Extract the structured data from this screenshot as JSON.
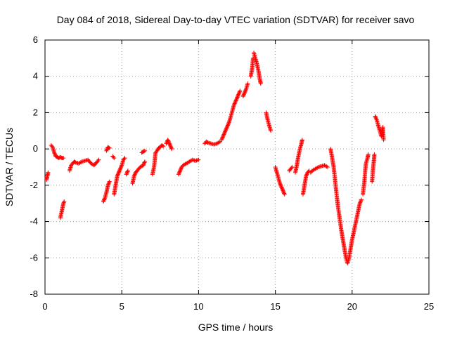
{
  "chart_data": {
    "type": "scatter",
    "title": "Day 084 of 2018, Sidereal Day-to-day VTEC variation (SDTVAR) for receiver savo",
    "xlabel": "GPS time / hours",
    "ylabel": "SDTVAR / TECUs",
    "xlim": [
      0,
      25
    ],
    "ylim": [
      -8,
      6
    ],
    "xticks": [
      0,
      5,
      10,
      15,
      20,
      25
    ],
    "yticks": [
      -8,
      -6,
      -4,
      -2,
      0,
      2,
      4,
      6
    ],
    "xtick_labels": [
      "0",
      "5",
      "10",
      "15",
      "20",
      "25"
    ],
    "ytick_labels": [
      "-8",
      "-6",
      "-4",
      "-2",
      "0",
      "2",
      "4",
      "6"
    ],
    "grid": true,
    "marker": "+",
    "marker_color": "#ff0000",
    "series": [
      {
        "segments": [
          [
            [
              0.1,
              -1.7
            ],
            [
              0.15,
              -1.5
            ],
            [
              0.2,
              -1.3
            ]
          ],
          [
            [
              0.4,
              0.2
            ],
            [
              0.5,
              0.1
            ],
            [
              0.6,
              -0.2
            ],
            [
              0.7,
              -0.4
            ],
            [
              0.8,
              -0.45
            ],
            [
              0.9,
              -0.5
            ],
            [
              1.0,
              -0.45
            ],
            [
              1.1,
              -0.5
            ],
            [
              1.2,
              -0.5
            ]
          ],
          [
            [
              1.0,
              -3.8
            ],
            [
              1.1,
              -3.4
            ],
            [
              1.2,
              -3.0
            ],
            [
              1.25,
              -2.9
            ]
          ],
          [
            [
              1.6,
              -1.2
            ],
            [
              1.7,
              -0.9
            ],
            [
              1.8,
              -0.8
            ],
            [
              1.9,
              -0.7
            ],
            [
              2.0,
              -0.75
            ],
            [
              2.2,
              -0.8
            ],
            [
              2.4,
              -0.7
            ],
            [
              2.6,
              -0.65
            ],
            [
              2.8,
              -0.6
            ],
            [
              3.0,
              -0.8
            ],
            [
              3.2,
              -0.9
            ],
            [
              3.4,
              -0.7
            ],
            [
              3.5,
              -0.6
            ]
          ],
          [
            [
              3.8,
              -2.9
            ],
            [
              3.9,
              -2.7
            ],
            [
              4.0,
              -2.4
            ],
            [
              4.1,
              -2.0
            ],
            [
              4.2,
              -1.8
            ]
          ],
          [
            [
              4.0,
              -0.1
            ],
            [
              4.1,
              0.1
            ],
            [
              4.2,
              0.05
            ]
          ],
          [
            [
              4.4,
              -0.4
            ],
            [
              4.5,
              -0.5
            ]
          ],
          [
            [
              4.5,
              -2.5
            ],
            [
              4.6,
              -2.0
            ],
            [
              4.7,
              -1.5
            ],
            [
              4.8,
              -1.3
            ],
            [
              4.9,
              -1.1
            ],
            [
              5.0,
              -0.9
            ],
            [
              5.1,
              -0.6
            ],
            [
              5.2,
              -0.5
            ]
          ],
          [
            [
              5.3,
              -1.4
            ],
            [
              5.4,
              -1.2
            ]
          ],
          [
            [
              5.7,
              -1.9
            ],
            [
              5.8,
              -1.5
            ],
            [
              5.9,
              -1.3
            ],
            [
              6.0,
              -1.2
            ],
            [
              6.1,
              -1.1
            ],
            [
              6.2,
              -1.0
            ],
            [
              6.4,
              -0.9
            ],
            [
              6.5,
              -0.7
            ]
          ],
          [
            [
              6.3,
              -0.2
            ],
            [
              6.4,
              -0.15
            ],
            [
              6.5,
              -0.1
            ]
          ],
          [
            [
              7.0,
              -1.4
            ],
            [
              7.1,
              -1.0
            ],
            [
              7.15,
              -0.6
            ],
            [
              7.2,
              -0.2
            ],
            [
              7.3,
              -0.1
            ],
            [
              7.4,
              0.05
            ],
            [
              7.5,
              0.1
            ],
            [
              7.6,
              0.2
            ],
            [
              7.7,
              0.15
            ]
          ],
          [
            [
              7.9,
              0.3
            ],
            [
              8.0,
              0.5
            ],
            [
              8.1,
              0.3
            ],
            [
              8.2,
              0.1
            ],
            [
              8.25,
              0.0
            ]
          ],
          [
            [
              8.7,
              -1.4
            ],
            [
              8.8,
              -1.2
            ],
            [
              8.9,
              -1.0
            ],
            [
              9.0,
              -0.9
            ],
            [
              9.2,
              -0.8
            ],
            [
              9.4,
              -0.7
            ],
            [
              9.6,
              -0.6
            ],
            [
              9.8,
              -0.65
            ],
            [
              10.0,
              -0.6
            ]
          ],
          [
            [
              10.4,
              0.3
            ],
            [
              10.5,
              0.4
            ],
            [
              10.6,
              0.35
            ],
            [
              10.8,
              0.3
            ],
            [
              11.0,
              0.25
            ],
            [
              11.2,
              0.3
            ],
            [
              11.4,
              0.4
            ]
          ],
          [
            [
              11.5,
              0.5
            ],
            [
              11.6,
              0.7
            ],
            [
              11.7,
              0.9
            ],
            [
              11.8,
              1.1
            ],
            [
              11.9,
              1.3
            ],
            [
              12.0,
              1.5
            ],
            [
              12.1,
              1.8
            ],
            [
              12.2,
              2.1
            ],
            [
              12.3,
              2.4
            ],
            [
              12.4,
              2.6
            ],
            [
              12.5,
              2.8
            ],
            [
              12.6,
              3.0
            ],
            [
              12.7,
              3.2
            ]
          ],
          [
            [
              12.9,
              2.9
            ],
            [
              13.0,
              3.1
            ],
            [
              13.1,
              3.3
            ],
            [
              13.2,
              3.6
            ]
          ],
          [
            [
              13.4,
              4.0
            ],
            [
              13.5,
              4.5
            ],
            [
              13.55,
              5.0
            ]
          ],
          [
            [
              13.6,
              5.3
            ],
            [
              13.7,
              5.0
            ],
            [
              13.8,
              4.7
            ],
            [
              13.9,
              4.3
            ],
            [
              14.0,
              3.8
            ],
            [
              14.05,
              3.6
            ]
          ],
          [
            [
              14.4,
              2.0
            ],
            [
              14.5,
              1.6
            ],
            [
              14.6,
              1.3
            ],
            [
              14.7,
              1.0
            ]
          ],
          [
            [
              15.0,
              -1.0
            ],
            [
              15.1,
              -1.3
            ],
            [
              15.2,
              -1.6
            ],
            [
              15.3,
              -1.9
            ],
            [
              15.4,
              -2.1
            ],
            [
              15.5,
              -2.3
            ],
            [
              15.6,
              -2.5
            ]
          ],
          [
            [
              15.9,
              -1.2
            ],
            [
              16.0,
              -1.1
            ],
            [
              16.1,
              -1.0
            ]
          ],
          [
            [
              16.3,
              -1.3
            ],
            [
              16.4,
              -0.9
            ],
            [
              16.5,
              -0.4
            ],
            [
              16.6,
              0.0
            ],
            [
              16.7,
              0.3
            ],
            [
              16.75,
              0.5
            ]
          ],
          [
            [
              16.8,
              -2.5
            ],
            [
              16.9,
              -2.0
            ],
            [
              17.0,
              -1.5
            ],
            [
              17.1,
              -1.3
            ],
            [
              17.2,
              -1.2
            ]
          ],
          [
            [
              17.3,
              -1.3
            ],
            [
              17.4,
              -1.2
            ],
            [
              17.6,
              -1.1
            ],
            [
              17.8,
              -1.0
            ],
            [
              18.0,
              -0.95
            ],
            [
              18.2,
              -0.9
            ],
            [
              18.4,
              -1.0
            ]
          ],
          [
            [
              18.6,
              0.0
            ],
            [
              18.7,
              -0.5
            ],
            [
              18.8,
              -1.0
            ],
            [
              18.9,
              -1.8
            ],
            [
              19.0,
              -2.6
            ],
            [
              19.1,
              -3.3
            ],
            [
              19.2,
              -3.9
            ],
            [
              19.3,
              -4.5
            ],
            [
              19.4,
              -5.0
            ],
            [
              19.5,
              -5.5
            ],
            [
              19.6,
              -6.0
            ],
            [
              19.7,
              -6.3
            ],
            [
              19.8,
              -6.0
            ],
            [
              19.9,
              -5.5
            ],
            [
              20.0,
              -5.0
            ],
            [
              20.1,
              -4.6
            ],
            [
              20.2,
              -4.2
            ],
            [
              20.3,
              -3.8
            ],
            [
              20.4,
              -3.4
            ],
            [
              20.5,
              -3.0
            ],
            [
              20.6,
              -2.8
            ]
          ],
          [
            [
              20.7,
              -2.5
            ],
            [
              20.8,
              -1.8
            ],
            [
              20.85,
              -1.2
            ],
            [
              20.9,
              -0.8
            ],
            [
              21.0,
              -0.5
            ],
            [
              21.05,
              -0.3
            ]
          ],
          [
            [
              21.3,
              -1.8
            ],
            [
              21.35,
              -1.2
            ],
            [
              21.4,
              -0.8
            ],
            [
              21.45,
              -0.3
            ]
          ],
          [
            [
              21.5,
              1.8
            ],
            [
              21.6,
              1.6
            ],
            [
              21.7,
              1.3
            ],
            [
              21.8,
              1.0
            ],
            [
              21.9,
              0.7
            ],
            [
              22.0,
              1.2
            ],
            [
              22.05,
              0.5
            ]
          ]
        ]
      }
    ]
  }
}
